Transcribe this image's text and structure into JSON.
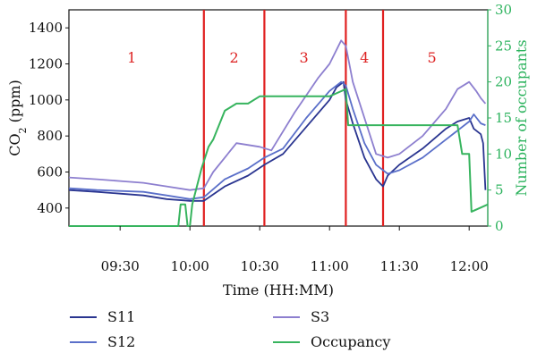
{
  "chart_data": {
    "type": "line",
    "xlabel": "Time (HH:MM)",
    "ylabel": "CO2 (ppm)",
    "ylabel_base": "CO",
    "ylabel_sub": "2",
    "ylabel_rest": " (ppm)",
    "y2label": "Number of occupants",
    "xlim": [
      "09:08",
      "12:08"
    ],
    "ylim": [
      300,
      1500
    ],
    "y2lim": [
      0,
      30
    ],
    "x_ticks": [
      "09:30",
      "10:00",
      "10:30",
      "11:00",
      "11:30",
      "12:00"
    ],
    "y_ticks": [
      400,
      600,
      800,
      1000,
      1200,
      1400
    ],
    "y2_ticks": [
      0,
      5,
      10,
      15,
      20,
      25,
      30
    ],
    "phase_lines": [
      "10:06",
      "10:32",
      "11:07",
      "11:23"
    ],
    "phase_labels": [
      {
        "label": "1",
        "x": "09:35"
      },
      {
        "label": "2",
        "x": "10:19"
      },
      {
        "label": "3",
        "x": "10:49"
      },
      {
        "label": "4",
        "x": "11:15"
      },
      {
        "label": "5",
        "x": "11:44"
      }
    ],
    "series": [
      {
        "name": "S11",
        "color": "#2a3590",
        "axis": "left",
        "x": [
          "09:08",
          "09:20",
          "09:30",
          "09:40",
          "09:50",
          "10:00",
          "10:06",
          "10:15",
          "10:25",
          "10:32",
          "10:40",
          "10:50",
          "11:00",
          "11:03",
          "11:06",
          "11:07",
          "11:10",
          "11:15",
          "11:20",
          "11:23",
          "11:25",
          "11:30",
          "11:40",
          "11:50",
          "11:55",
          "12:00",
          "12:02",
          "12:05",
          "12:06",
          "12:07"
        ],
        "y": [
          500,
          490,
          480,
          470,
          450,
          440,
          440,
          520,
          580,
          640,
          700,
          850,
          1000,
          1070,
          1100,
          1000,
          870,
          680,
          560,
          520,
          580,
          640,
          730,
          840,
          880,
          900,
          840,
          810,
          760,
          500
        ]
      },
      {
        "name": "S12",
        "color": "#5a6fc9",
        "axis": "left",
        "x": [
          "09:08",
          "09:20",
          "09:30",
          "09:40",
          "09:50",
          "10:00",
          "10:06",
          "10:15",
          "10:25",
          "10:32",
          "10:40",
          "10:50",
          "11:00",
          "11:05",
          "11:07",
          "11:10",
          "11:15",
          "11:20",
          "11:25",
          "11:30",
          "11:40",
          "11:50",
          "12:00",
          "12:02",
          "12:05",
          "12:07"
        ],
        "y": [
          510,
          500,
          495,
          490,
          470,
          450,
          460,
          560,
          620,
          680,
          730,
          900,
          1050,
          1100,
          1080,
          950,
          760,
          640,
          590,
          610,
          680,
          780,
          880,
          920,
          870,
          860
        ]
      },
      {
        "name": "S3",
        "color": "#8d7fcf",
        "axis": "left",
        "x": [
          "09:08",
          "09:20",
          "09:30",
          "09:40",
          "09:50",
          "10:00",
          "10:06",
          "10:10",
          "10:20",
          "10:30",
          "10:35",
          "10:45",
          "10:55",
          "11:00",
          "11:05",
          "11:07",
          "11:10",
          "11:15",
          "11:20",
          "11:25",
          "11:30",
          "11:40",
          "11:50",
          "11:55",
          "12:00",
          "12:03",
          "12:05",
          "12:07"
        ],
        "y": [
          570,
          560,
          550,
          540,
          520,
          500,
          510,
          600,
          760,
          740,
          720,
          930,
          1120,
          1200,
          1330,
          1300,
          1100,
          900,
          700,
          680,
          700,
          800,
          950,
          1060,
          1100,
          1050,
          1010,
          980
        ]
      },
      {
        "name": "Occupancy",
        "color": "#37b45e",
        "axis": "right",
        "x": [
          "09:08",
          "09:09",
          "09:55",
          "09:56",
          "09:58",
          "09:59",
          "10:00",
          "10:01",
          "10:05",
          "10:08",
          "10:10",
          "10:15",
          "10:20",
          "10:25",
          "10:30",
          "11:00",
          "11:07",
          "11:08",
          "11:55",
          "11:57",
          "12:00",
          "12:01",
          "12:08"
        ],
        "y": [
          0,
          0,
          0,
          3,
          3,
          0,
          0,
          3,
          8,
          11,
          12,
          16,
          17,
          17,
          18,
          18,
          19,
          14,
          14,
          10,
          10,
          2,
          3
        ]
      }
    ],
    "legend": [
      "S11",
      "S3",
      "S12",
      "Occupancy"
    ],
    "legend_position": "bottom"
  }
}
